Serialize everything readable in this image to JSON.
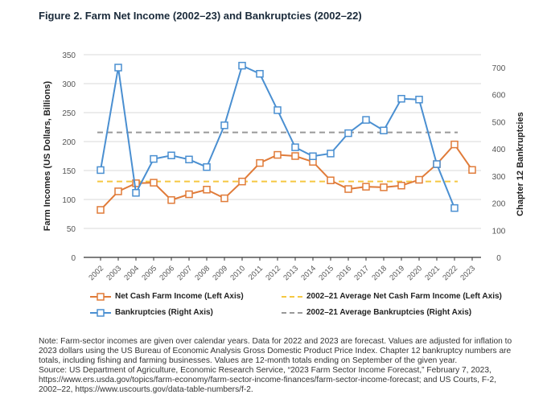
{
  "chart_data": {
    "type": "line",
    "title": "Figure 2. Farm Net Income (2002–23) and Bankruptcies (2002–22)",
    "ylabel": "Farm Incomes (US Dollars, Billions)",
    "y2label": "Chapter 12 Bankruptcies",
    "ylim": [
      0,
      350
    ],
    "y2lim": [
      0,
      700
    ],
    "yticks": [
      0,
      50,
      100,
      150,
      200,
      250,
      300,
      350
    ],
    "y2ticks": [
      0,
      100,
      200,
      300,
      400,
      500,
      600,
      700
    ],
    "categories": [
      "2002",
      "2003",
      "2004",
      "2005",
      "2006",
      "2007",
      "2008",
      "2009",
      "2010",
      "2011",
      "2012",
      "2013",
      "2014",
      "2015",
      "2016",
      "2017",
      "2018",
      "2019",
      "2020",
      "2021",
      "2022",
      "2023"
    ],
    "series": [
      {
        "name": "Net Cash Farm Income (Left Axis)",
        "axis": "left",
        "color": "#e07b39",
        "values": [
          82,
          114,
          128,
          129,
          99,
          109,
          117,
          102,
          131,
          163,
          177,
          175,
          165,
          133,
          118,
          122,
          121,
          124,
          134,
          161,
          195,
          151
        ]
      },
      {
        "name": "Bankruptcies (Right Axis)",
        "axis": "right",
        "color": "#4a8fd1",
        "values": [
          322,
          700,
          238,
          363,
          376,
          361,
          333,
          487,
          707,
          677,
          543,
          406,
          373,
          383,
          458,
          507,
          468,
          585,
          582,
          344,
          182,
          null
        ]
      }
    ],
    "references": [
      {
        "name": "2002–21 Average Net Cash Farm Income (Left Axis)",
        "axis": "left",
        "value": 131,
        "color": "#f5c842"
      },
      {
        "name": "2002–21 Average Bankruptcies (Right Axis)",
        "axis": "right",
        "value": 461,
        "color": "#999999"
      }
    ],
    "grid": true,
    "legend": "bottom"
  },
  "note": "Note: Farm-sector incomes are given over calendar years. Data for 2022 and 2023 are forecast. Values are adjusted for inflation to 2023 dollars using the US Bureau of Economic Analysis Gross Domestic Product Price Index. Chapter 12 bankruptcy numbers are totals, including fishing and farming businesses. Values are 12-month totals ending on September of the given year.",
  "source": "Source: US Department of Agriculture, Economic Research Service, “2023 Farm Sector Income Forecast,” February 7, 2023, https://www.ers.usda.gov/topics/farm-economy/farm-sector-income-finances/farm-sector-income-forecast; and US Courts, F-2, 2002–22, https://www.uscourts.gov/data-table-numbers/f-2."
}
